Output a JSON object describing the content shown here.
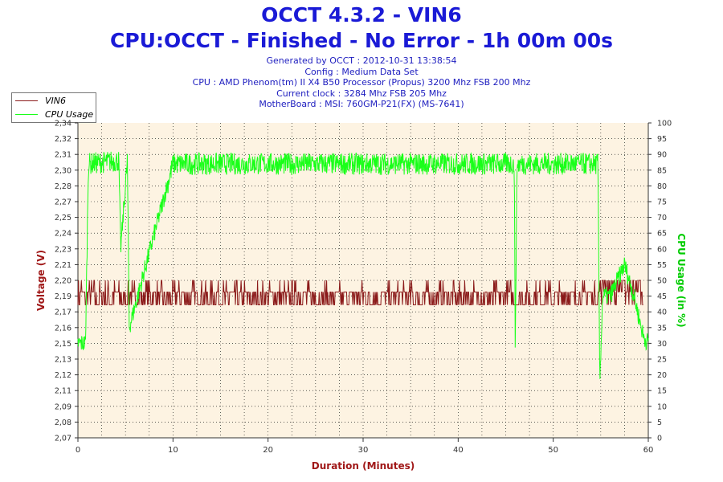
{
  "header": {
    "title": "OCCT 4.3.2 - VIN6",
    "subtitle": "CPU:OCCT - Finished - No Error - 1h 00m 00s",
    "info_lines": [
      "Generated by OCCT : 2012-10-31 13:38:54",
      "Config : Medium Data Set",
      "CPU : AMD Phenom(tm) II X4 B50 Processor (Propus) 3200 Mhz FSB 200 Mhz",
      "Current clock : 3284 Mhz FSB 205 Mhz",
      "MotherBoard : MSI: 760GM-P21(FX) (MS-7641)"
    ]
  },
  "legend": {
    "items": [
      {
        "label": "VIN6",
        "color": "#8b1a1a"
      },
      {
        "label": "CPU Usage",
        "color": "#19ff19"
      }
    ]
  },
  "colors": {
    "plot_bg": "#fdf3e2",
    "grid": "#000000",
    "voltage": "#8b1a1a",
    "cpu": "#19ff19",
    "xlabel": "#a01818",
    "ylabel_left": "#a01818",
    "ylabel_right": "#00cc00"
  },
  "chart_data": {
    "type": "line",
    "xlabel": "Duration (Minutes)",
    "ylabel": "Voltage (V)",
    "ylabel_right": "CPU Usage (in %)",
    "xlim": [
      0,
      60
    ],
    "ylim": [
      2.07,
      2.34
    ],
    "ylim_right": [
      0,
      100
    ],
    "grid": true,
    "legend_position": "top-left",
    "x_ticks": [
      0,
      10,
      20,
      30,
      40,
      50,
      60
    ],
    "y_ticks": [
      "2,07",
      "2,08",
      "2,09",
      "2,11",
      "2,12",
      "2,13",
      "2,15",
      "2,16",
      "2,17",
      "2,19",
      "2,20",
      "2,21",
      "2,23",
      "2,24",
      "2,25",
      "2,27",
      "2,28",
      "2,30",
      "2,31",
      "2,32",
      "2,34"
    ],
    "y_right_ticks": [
      0,
      5,
      10,
      15,
      20,
      25,
      30,
      35,
      40,
      45,
      50,
      55,
      60,
      65,
      70,
      75,
      80,
      85,
      90,
      95,
      100
    ],
    "series": [
      {
        "name": "VIN6",
        "axis": "left",
        "x": [
          0,
          0.5,
          1,
          5,
          10,
          15,
          20,
          25,
          30,
          35,
          40,
          45,
          50,
          54.5,
          55,
          57,
          59.5
        ],
        "values": [
          2.19,
          2.2,
          2.19,
          2.19,
          2.19,
          2.19,
          2.19,
          2.19,
          2.19,
          2.19,
          2.19,
          2.19,
          2.19,
          2.19,
          2.2,
          2.2,
          2.2
        ]
      },
      {
        "name": "CPU Usage",
        "axis": "right",
        "x": [
          0,
          0.8,
          1.1,
          4.3,
          4.5,
          5.2,
          5.4,
          10,
          20,
          30,
          40,
          45.9,
          46,
          46.2,
          50,
          54.7,
          54.9,
          55.2,
          56,
          57.5,
          58.5,
          59.5,
          60
        ],
        "values": [
          30,
          30,
          87,
          88,
          60,
          88,
          35,
          87,
          87,
          87,
          87,
          87,
          30,
          87,
          87,
          87,
          18,
          45,
          45,
          55,
          45,
          32,
          30
        ]
      }
    ]
  }
}
